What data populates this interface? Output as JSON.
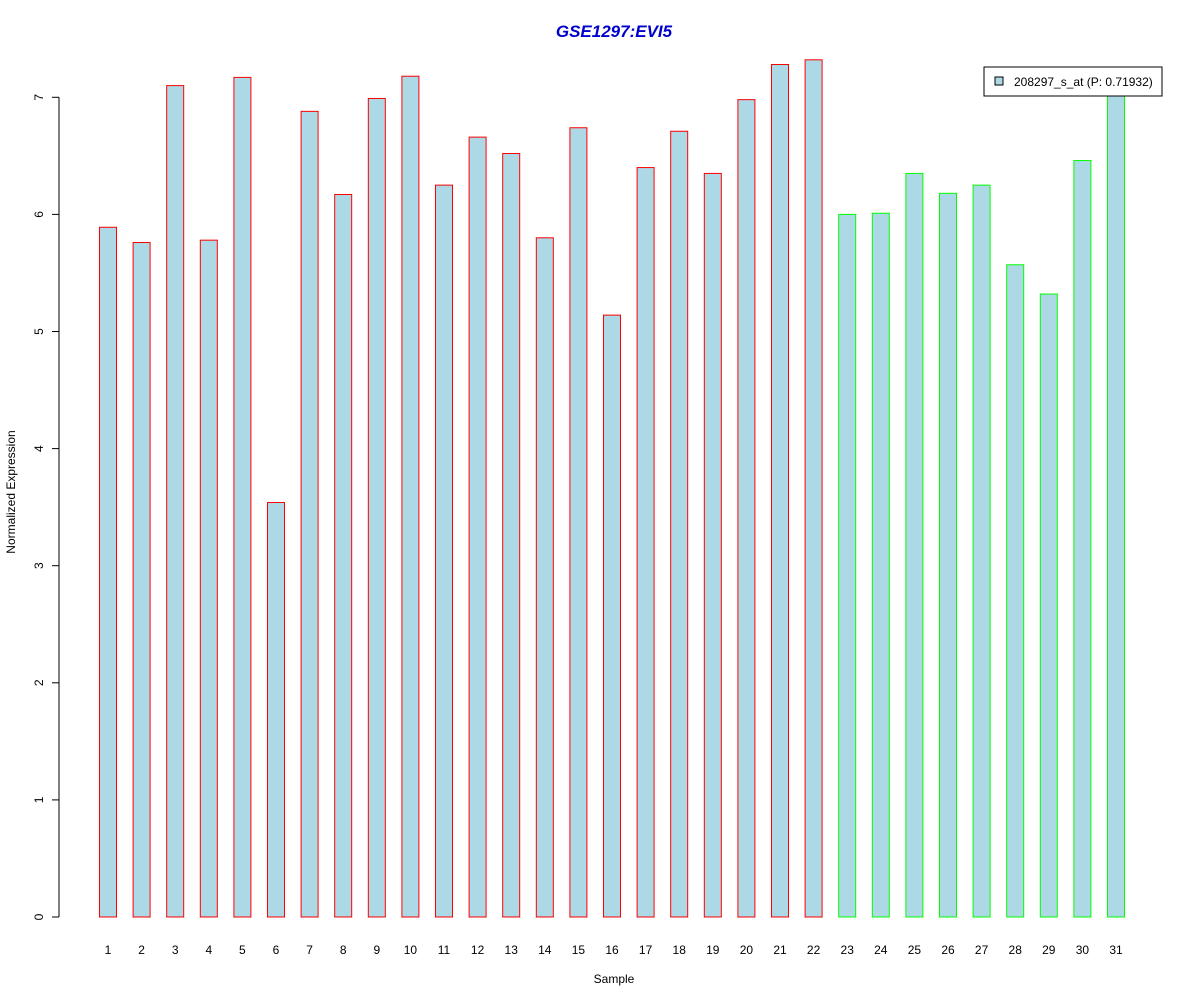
{
  "chart_data": {
    "type": "bar",
    "title": "GSE1297:EVI5",
    "xlabel": "Sample",
    "ylabel": "Normalized Expression",
    "ylim": [
      0,
      7.3
    ],
    "yticks": [
      0,
      1,
      2,
      3,
      4,
      5,
      6,
      7
    ],
    "categories": [
      "1",
      "2",
      "3",
      "4",
      "5",
      "6",
      "7",
      "8",
      "9",
      "10",
      "11",
      "12",
      "13",
      "14",
      "15",
      "16",
      "17",
      "18",
      "19",
      "20",
      "21",
      "22",
      "23",
      "24",
      "25",
      "26",
      "27",
      "28",
      "29",
      "30",
      "31"
    ],
    "series": [
      {
        "name": "208297_s_at (P: 0.71932)",
        "fill_color": "#ADD8E6",
        "values": [
          5.89,
          5.76,
          7.1,
          5.78,
          7.17,
          3.54,
          6.88,
          6.17,
          6.99,
          7.18,
          6.25,
          6.66,
          6.52,
          5.8,
          6.74,
          5.14,
          6.4,
          6.71,
          6.35,
          6.98,
          7.28,
          7.32,
          6.0,
          6.01,
          6.35,
          6.18,
          6.25,
          5.57,
          5.32,
          6.46,
          7.04
        ]
      }
    ],
    "groups": [
      {
        "samples": [
          1,
          22
        ],
        "border_color": "#FF0000"
      },
      {
        "samples": [
          23,
          31
        ],
        "border_color": "#00FF00"
      }
    ],
    "title_color": "#0000CD",
    "grid": false,
    "legend_position": "top-right"
  }
}
